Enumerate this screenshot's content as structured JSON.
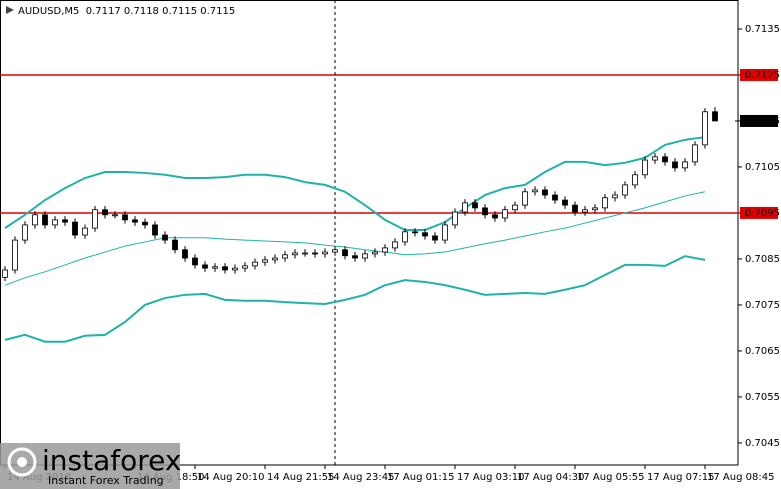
{
  "chart_data": {
    "type": "candlestick",
    "title": "AUDUSD,M5  0.7117 0.7118 0.7115 0.7115",
    "ylim": [
      0.70402,
      0.71413
    ],
    "yticks": [
      0.7135,
      0.7125,
      0.7115,
      0.7105,
      0.7095,
      0.7085,
      0.7075,
      0.7065,
      0.7055,
      0.7045
    ],
    "xticks": [
      {
        "value": 0,
        "label": "14 Aug 2018"
      },
      {
        "value": 13,
        "label": "14 Aug 18:50"
      },
      {
        "value": 19,
        "label": "14 Aug 20:10"
      },
      {
        "value": 26,
        "label": "14 Aug 21:55"
      },
      {
        "value": 32,
        "label": "14 Aug 23:45"
      },
      {
        "value": 38,
        "label": "17 Aug 01:15"
      },
      {
        "value": 45,
        "label": "17 Aug 03:10"
      },
      {
        "value": 51,
        "label": "17 Aug 04:30"
      },
      {
        "value": 57,
        "label": "17 Aug 05:55"
      },
      {
        "value": 64,
        "label": "17 Aug 07:15"
      },
      {
        "value": 70,
        "label": "17 Aug 08:45"
      }
    ],
    "hlines": [
      0.7125,
      0.7095
    ],
    "hline_color": "#e00000",
    "current_price": 0.7115,
    "vline": 33,
    "up_color": "#ffffff",
    "down_color": "#000000",
    "open": [
      0.7081,
      0.70826,
      0.70891,
      0.70924,
      0.70946,
      0.70924,
      0.70935,
      0.7093,
      0.70902,
      0.70917,
      0.70957,
      0.70946,
      0.70946,
      0.70935,
      0.7093,
      0.70924,
      0.70902,
      0.70891,
      0.7087,
      0.70852,
      0.70837,
      0.7083,
      0.70833,
      0.70826,
      0.7083,
      0.70835,
      0.70843,
      0.70848,
      0.70852,
      0.70859,
      0.70863,
      0.70863,
      0.70861,
      0.70865,
      0.7087,
      0.70857,
      0.70852,
      0.70861,
      0.70865,
      0.70874,
      0.70887,
      0.70909,
      0.70907,
      0.709,
      0.70891,
      0.70924,
      0.70952,
      0.70972,
      0.70961,
      0.70946,
      0.70939,
      0.70957,
      0.70967,
      0.70996,
      0.71,
      0.70989,
      0.70978,
      0.70967,
      0.70952,
      0.70957,
      0.70961,
      0.70983,
      0.70989,
      0.71011,
      0.71033,
      0.71065,
      0.71072,
      0.71061,
      0.71048,
      0.71061,
      0.71098,
      0.7117
    ],
    "high": [
      0.70834,
      0.70899,
      0.70932,
      0.70954,
      0.70954,
      0.70943,
      0.70943,
      0.70938,
      0.70925,
      0.70965,
      0.70965,
      0.70954,
      0.70954,
      0.70943,
      0.70938,
      0.70932,
      0.7091,
      0.70899,
      0.70878,
      0.7086,
      0.70845,
      0.70841,
      0.70841,
      0.70838,
      0.70843,
      0.70851,
      0.70856,
      0.7086,
      0.70867,
      0.70871,
      0.70871,
      0.70871,
      0.70873,
      0.70878,
      0.70878,
      0.70865,
      0.70869,
      0.70873,
      0.70882,
      0.70895,
      0.70917,
      0.70917,
      0.70915,
      0.70908,
      0.70932,
      0.7096,
      0.7098,
      0.7098,
      0.70969,
      0.70954,
      0.70965,
      0.70975,
      0.71004,
      0.71008,
      0.71008,
      0.70997,
      0.70986,
      0.70975,
      0.70965,
      0.70969,
      0.70991,
      0.70997,
      0.71019,
      0.71041,
      0.71073,
      0.7108,
      0.7108,
      0.71069,
      0.71069,
      0.71106,
      0.71178,
      0.7118
    ],
    "low": [
      0.70802,
      0.70818,
      0.70883,
      0.70916,
      0.70916,
      0.70916,
      0.70922,
      0.70894,
      0.70894,
      0.70909,
      0.70938,
      0.70938,
      0.70927,
      0.70922,
      0.70916,
      0.70894,
      0.70883,
      0.70862,
      0.70844,
      0.70829,
      0.70822,
      0.70822,
      0.70818,
      0.70818,
      0.70822,
      0.70827,
      0.70835,
      0.7084,
      0.70844,
      0.70851,
      0.70855,
      0.70853,
      0.70853,
      0.70857,
      0.70849,
      0.70844,
      0.70844,
      0.70853,
      0.70857,
      0.70866,
      0.70879,
      0.70899,
      0.70892,
      0.70883,
      0.70883,
      0.70916,
      0.70944,
      0.70953,
      0.70938,
      0.70931,
      0.70931,
      0.70949,
      0.70959,
      0.70988,
      0.70981,
      0.7097,
      0.70959,
      0.70944,
      0.70944,
      0.70949,
      0.70953,
      0.70975,
      0.70981,
      0.71003,
      0.71025,
      0.71057,
      0.71053,
      0.7104,
      0.7104,
      0.71053,
      0.7109,
      0.7115
    ],
    "close": [
      0.70826,
      0.70891,
      0.70924,
      0.70946,
      0.70924,
      0.70935,
      0.7093,
      0.70902,
      0.70917,
      0.70957,
      0.70946,
      0.70946,
      0.70935,
      0.7093,
      0.70924,
      0.70902,
      0.70891,
      0.7087,
      0.70852,
      0.70837,
      0.7083,
      0.70833,
      0.70826,
      0.7083,
      0.70835,
      0.70843,
      0.70848,
      0.70852,
      0.70859,
      0.70863,
      0.70863,
      0.70861,
      0.70865,
      0.7087,
      0.70857,
      0.70852,
      0.70861,
      0.70865,
      0.70874,
      0.70887,
      0.70909,
      0.70907,
      0.709,
      0.70891,
      0.70924,
      0.70952,
      0.70972,
      0.70961,
      0.70946,
      0.70939,
      0.70957,
      0.70967,
      0.70996,
      0.71,
      0.70989,
      0.70978,
      0.70967,
      0.70952,
      0.70957,
      0.70961,
      0.70983,
      0.70989,
      0.71011,
      0.71033,
      0.71065,
      0.71072,
      0.71061,
      0.71048,
      0.71061,
      0.71098,
      0.7117,
      0.7115
    ],
    "bands": {
      "color": "#20b2aa",
      "x": [
        0,
        2,
        4,
        6,
        8,
        10,
        12,
        14,
        16,
        18,
        20,
        22,
        24,
        26,
        28,
        30,
        32,
        34,
        36,
        38,
        40,
        42,
        44,
        46,
        48,
        50,
        52,
        54,
        56,
        58,
        60,
        62,
        64,
        66,
        68,
        70
      ],
      "upper": [
        0.70917,
        0.70946,
        0.70978,
        0.71004,
        0.71026,
        0.71039,
        0.71039,
        0.71037,
        0.71033,
        0.71026,
        0.71026,
        0.71028,
        0.71033,
        0.71033,
        0.71028,
        0.71017,
        0.71011,
        0.70996,
        0.70967,
        0.70935,
        0.70913,
        0.70913,
        0.7093,
        0.70961,
        0.70989,
        0.71004,
        0.71011,
        0.71039,
        0.71061,
        0.71061,
        0.71054,
        0.71059,
        0.7107,
        0.71098,
        0.71109,
        0.71115
      ],
      "middle": [
        0.70793,
        0.70809,
        0.70822,
        0.70837,
        0.70852,
        0.70865,
        0.70878,
        0.70887,
        0.70896,
        0.70896,
        0.70896,
        0.70893,
        0.70891,
        0.70889,
        0.70887,
        0.70885,
        0.7088,
        0.70876,
        0.7087,
        0.70865,
        0.70859,
        0.70861,
        0.70865,
        0.70874,
        0.70883,
        0.70891,
        0.709,
        0.70909,
        0.70917,
        0.70928,
        0.70939,
        0.7095,
        0.70961,
        0.70974,
        0.70987,
        0.70996
      ],
      "lower": [
        0.70674,
        0.70685,
        0.7067,
        0.7067,
        0.70683,
        0.70685,
        0.70713,
        0.7075,
        0.70765,
        0.70772,
        0.70774,
        0.70761,
        0.70759,
        0.70759,
        0.70756,
        0.70754,
        0.70752,
        0.70761,
        0.70772,
        0.70793,
        0.70804,
        0.708,
        0.70793,
        0.70783,
        0.70772,
        0.70774,
        0.70776,
        0.70774,
        0.70783,
        0.70793,
        0.70815,
        0.70837,
        0.70837,
        0.70835,
        0.70856,
        0.70848
      ]
    }
  },
  "watermark": {
    "brand": "instaforex",
    "slogan": "Instant Forex Trading"
  }
}
